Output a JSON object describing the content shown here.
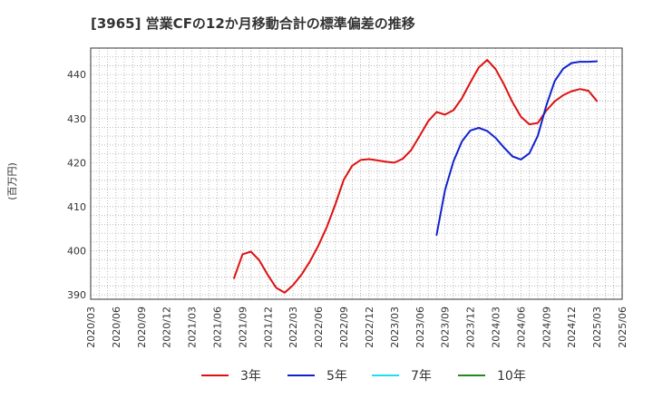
{
  "chart_data": {
    "type": "line",
    "title": "[3965]  営業CFの12か月移動合計の標準偏差の推移",
    "ylabel": "(百万円)",
    "xlabel": "",
    "ylim": [
      389,
      446
    ],
    "yticks": [
      390,
      400,
      410,
      420,
      430,
      440
    ],
    "x_tick_labels": [
      "2020/03",
      "2020/06",
      "2020/09",
      "2020/12",
      "2021/03",
      "2021/06",
      "2021/09",
      "2021/12",
      "2022/03",
      "2022/06",
      "2022/09",
      "2022/12",
      "2023/03",
      "2023/06",
      "2023/09",
      "2023/12",
      "2024/03",
      "2024/06",
      "2024/09",
      "2024/12",
      "2025/03",
      "2025/06"
    ],
    "grid": true,
    "legend_position": "bottom",
    "series": [
      {
        "name": "3年",
        "color": "#dd1111",
        "x": [
          "2021/08",
          "2021/09",
          "2021/10",
          "2021/11",
          "2021/12",
          "2022/01",
          "2022/02",
          "2022/03",
          "2022/04",
          "2022/05",
          "2022/06",
          "2022/07",
          "2022/08",
          "2022/09",
          "2022/10",
          "2022/11",
          "2022/12",
          "2023/01",
          "2023/02",
          "2023/03",
          "2023/04",
          "2023/05",
          "2023/06",
          "2023/07",
          "2023/08",
          "2023/09",
          "2023/10",
          "2023/11",
          "2023/12",
          "2024/01",
          "2024/02",
          "2024/03",
          "2024/04",
          "2024/05",
          "2024/06",
          "2024/07",
          "2024/08",
          "2024/09",
          "2024/10",
          "2024/11",
          "2024/12",
          "2025/01",
          "2025/02",
          "2025/03"
        ],
        "values": [
          393.8,
          399.2,
          399.8,
          397.8,
          394.5,
          391.6,
          390.5,
          392.2,
          394.6,
          397.6,
          401.2,
          405.4,
          410.5,
          416.1,
          419.3,
          420.6,
          420.8,
          420.5,
          420.2,
          420.0,
          420.9,
          422.9,
          426.1,
          429.4,
          431.5,
          430.9,
          431.9,
          434.6,
          438.2,
          441.6,
          443.3,
          441.2,
          437.7,
          433.7,
          430.4,
          428.7,
          429.0,
          431.8,
          433.9,
          435.3,
          436.2,
          436.7,
          436.3,
          434.0
        ]
      },
      {
        "name": "5年",
        "color": "#1122cc",
        "x": [
          "2023/08",
          "2023/09",
          "2023/10",
          "2023/11",
          "2023/12",
          "2024/01",
          "2024/02",
          "2024/03",
          "2024/04",
          "2024/05",
          "2024/06",
          "2024/07",
          "2024/08",
          "2024/09",
          "2024/10",
          "2024/11",
          "2024/12",
          "2025/01",
          "2025/02",
          "2025/03"
        ],
        "values": [
          403.6,
          413.8,
          420.3,
          424.8,
          427.3,
          427.9,
          427.2,
          425.6,
          423.4,
          421.4,
          420.7,
          422.1,
          426.1,
          432.9,
          438.5,
          441.3,
          442.6,
          442.9,
          442.9,
          443.0
        ]
      },
      {
        "name": "7年",
        "color": "#22ddee",
        "x": [],
        "values": []
      },
      {
        "name": "10年",
        "color": "#228822",
        "x": [],
        "values": []
      }
    ]
  }
}
